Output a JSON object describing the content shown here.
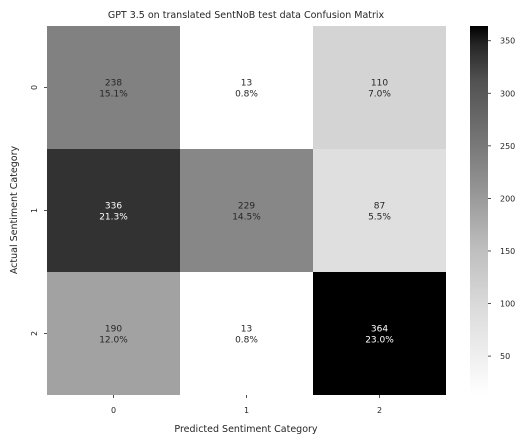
{
  "chart_data": {
    "type": "heatmap",
    "title": "GPT 3.5 on translated SentNoB test data Confusion Matrix",
    "xlabel": "Predicted Sentiment Category",
    "ylabel": "Actual Sentiment Category",
    "x_categories": [
      "0",
      "1",
      "2"
    ],
    "y_categories": [
      "0",
      "1",
      "2"
    ],
    "values": [
      [
        238,
        13,
        110
      ],
      [
        336,
        229,
        87
      ],
      [
        190,
        13,
        364
      ]
    ],
    "percentages": [
      [
        "15.1%",
        "0.8%",
        "7.0%"
      ],
      [
        "21.3%",
        "14.5%",
        "5.5%"
      ],
      [
        "12.0%",
        "0.8%",
        "23.0%"
      ]
    ],
    "colorbar": {
      "range": [
        13,
        364
      ],
      "ticks": [
        50,
        100,
        150,
        200,
        250,
        300,
        350
      ],
      "colormap": "Greys",
      "low_color": "#ffffff",
      "high_color": "#000000"
    }
  }
}
